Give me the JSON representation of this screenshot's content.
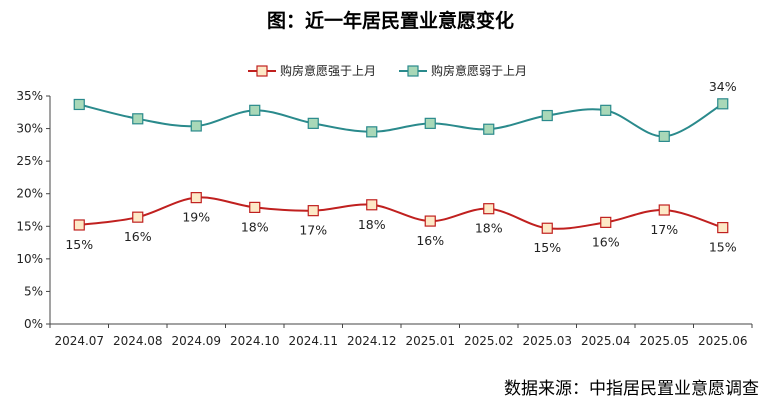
{
  "title": "图：近一年居民置业意愿变化",
  "source": "数据来源：中指居民置业意愿调查",
  "chart_data": {
    "type": "line",
    "categories": [
      "2024.07",
      "2024.08",
      "2024.09",
      "2024.10",
      "2024.11",
      "2024.12",
      "2025.01",
      "2025.02",
      "2025.03",
      "2025.04",
      "2025.05",
      "2025.06"
    ],
    "ylim": [
      0,
      35
    ],
    "yticks": [
      "0%",
      "5%",
      "10%",
      "15%",
      "20%",
      "25%",
      "30%",
      "35%"
    ],
    "grid": false,
    "legend_position": "top",
    "series": [
      {
        "name": "购房意愿强于上月",
        "color": "#c0201f",
        "marker_fill": "#fde9c7",
        "values": [
          15.2,
          16.4,
          19.4,
          17.9,
          17.4,
          18.3,
          15.8,
          17.7,
          14.7,
          15.6,
          17.5,
          14.8
        ],
        "labels": [
          "15%",
          "16%",
          "19%",
          "18%",
          "17%",
          "18%",
          "16%",
          "18%",
          "15%",
          "16%",
          "17%",
          "15%"
        ],
        "label_position": "below"
      },
      {
        "name": "购房意愿弱于上月",
        "color": "#2a8a8c",
        "marker_fill": "#a9d8b8",
        "values": [
          33.7,
          31.5,
          30.4,
          32.8,
          30.8,
          29.5,
          30.8,
          29.9,
          32.0,
          32.8,
          28.8,
          33.8
        ],
        "labels": [
          "",
          "",
          "",
          "",
          "",
          "",
          "",
          "",
          "",
          "",
          "",
          "34%"
        ],
        "label_position": "above"
      }
    ]
  }
}
